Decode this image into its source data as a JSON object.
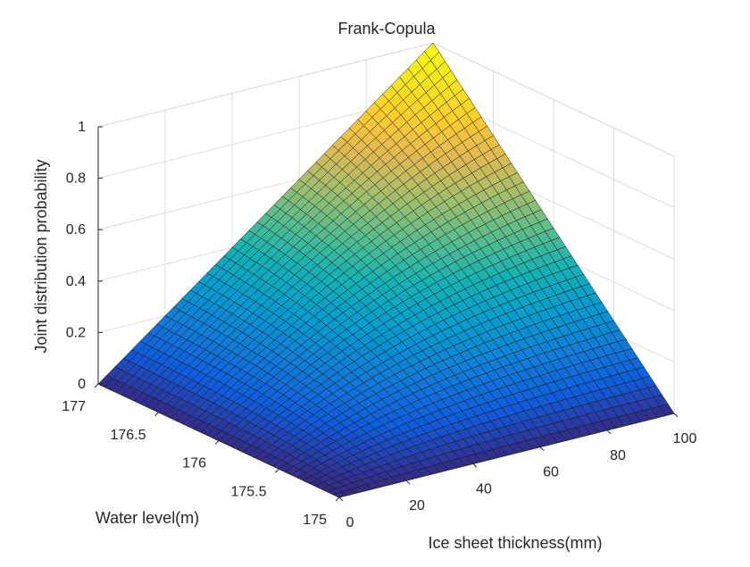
{
  "chart_data": {
    "type": "surface",
    "title": "Frank-Copula",
    "xlabel": "Ice sheet thickness(mm)",
    "ylabel": "Water level(m)",
    "zlabel": "Joint distribution probability",
    "x_ticks": [
      "0",
      "20",
      "40",
      "60",
      "80",
      "100"
    ],
    "x_tick_values": [
      0,
      20,
      40,
      60,
      80,
      100
    ],
    "y_ticks": [
      "175",
      "175.5",
      "176",
      "176.5",
      "177"
    ],
    "y_tick_values": [
      175,
      175.5,
      176,
      176.5,
      177
    ],
    "z_ticks": [
      "0",
      "0.2",
      "0.4",
      "0.6",
      "0.8",
      "1"
    ],
    "z_tick_values": [
      0,
      0.2,
      0.4,
      0.6,
      0.8,
      1
    ],
    "xlim": [
      0,
      100
    ],
    "ylim": [
      175,
      177
    ],
    "zlim": [
      0,
      1
    ],
    "grid": true,
    "colormap": "parula",
    "corner_values": {
      "x0_y175": 0,
      "x100_y175": 0,
      "x0_y177": 0,
      "x100_y177": 1
    },
    "grid_resolution": 40
  }
}
